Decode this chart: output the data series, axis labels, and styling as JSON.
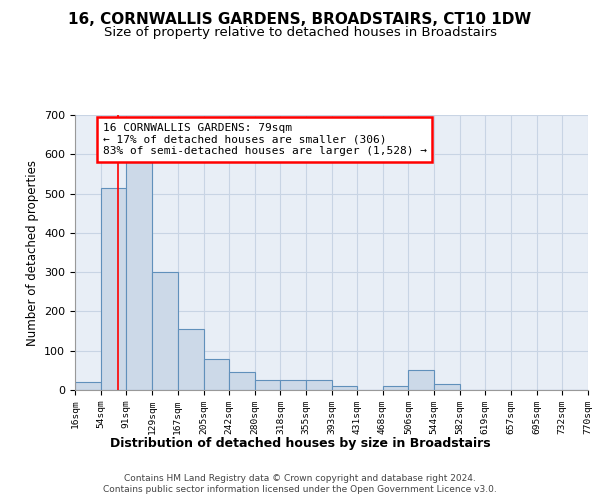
{
  "title": "16, CORNWALLIS GARDENS, BROADSTAIRS, CT10 1DW",
  "subtitle": "Size of property relative to detached houses in Broadstairs",
  "xlabel": "Distribution of detached houses by size in Broadstairs",
  "ylabel": "Number of detached properties",
  "bin_edges": [
    16,
    54,
    91,
    129,
    167,
    205,
    242,
    280,
    318,
    355,
    393,
    431,
    468,
    506,
    544,
    582,
    619,
    657,
    695,
    732,
    770
  ],
  "bar_heights": [
    20,
    515,
    580,
    300,
    155,
    80,
    45,
    25,
    25,
    25,
    10,
    0,
    10,
    50,
    15,
    0,
    0,
    0,
    0,
    0
  ],
  "bar_color": "#ccd9e8",
  "bar_edge_color": "#6090bb",
  "red_line_x": 79,
  "annotation_text_line1": "16 CORNWALLIS GARDENS: 79sqm",
  "annotation_text_line2": "← 17% of detached houses are smaller (306)",
  "annotation_text_line3": "83% of semi-detached houses are larger (1,528) →",
  "ylim": [
    0,
    700
  ],
  "yticks": [
    0,
    100,
    200,
    300,
    400,
    500,
    600,
    700
  ],
  "grid_color": "#c8d4e4",
  "bg_color": "#e8eef6",
  "footer_line1": "Contains HM Land Registry data © Crown copyright and database right 2024.",
  "footer_line2": "Contains public sector information licensed under the Open Government Licence v3.0.",
  "title_fontsize": 11,
  "subtitle_fontsize": 9.5,
  "xlabel_fontsize": 9,
  "ylabel_fontsize": 8.5,
  "footer_fontsize": 6.5,
  "annotation_fontsize": 8
}
